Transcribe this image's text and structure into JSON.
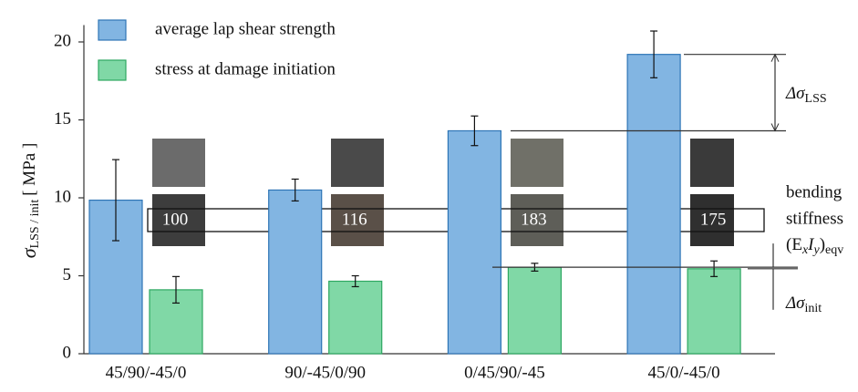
{
  "chart_data": {
    "type": "bar",
    "y_label": [
      "σ",
      "LSS / init",
      "[ MPa ]"
    ],
    "categories": [
      "45/90/-45/0",
      "90/-45/0/90",
      "0/45/90/-45",
      "45/0/-45/0"
    ],
    "series": [
      {
        "name": "average lap shear strength",
        "color": "#82b5e2",
        "stroke": "#2e75b6",
        "values": [
          9.85,
          10.5,
          14.3,
          19.2
        ],
        "errors": [
          2.6,
          0.7,
          0.95,
          1.5
        ]
      },
      {
        "name": "stress  at damage initiation",
        "color": "#80d8a6",
        "stroke": "#2ea862",
        "values": [
          4.1,
          4.65,
          5.55,
          5.45
        ],
        "errors": [
          0.85,
          0.35,
          0.25,
          0.5
        ]
      }
    ],
    "stiffness_values": [
      100,
      116,
      183,
      175
    ],
    "annotations": {
      "delta_lss": [
        "Δσ",
        "LSS"
      ],
      "delta_init": [
        "Δσ",
        "init"
      ],
      "stiffness_label": [
        "bending",
        "stiffness"
      ],
      "stiffness_symbol": [
        "(E",
        "x",
        "I",
        "y",
        ")",
        "eqv"
      ]
    },
    "ylim": [
      0,
      20.5
    ],
    "yticks": [
      0,
      5,
      10,
      15,
      20
    ],
    "grid": false,
    "legend": "top-left"
  }
}
